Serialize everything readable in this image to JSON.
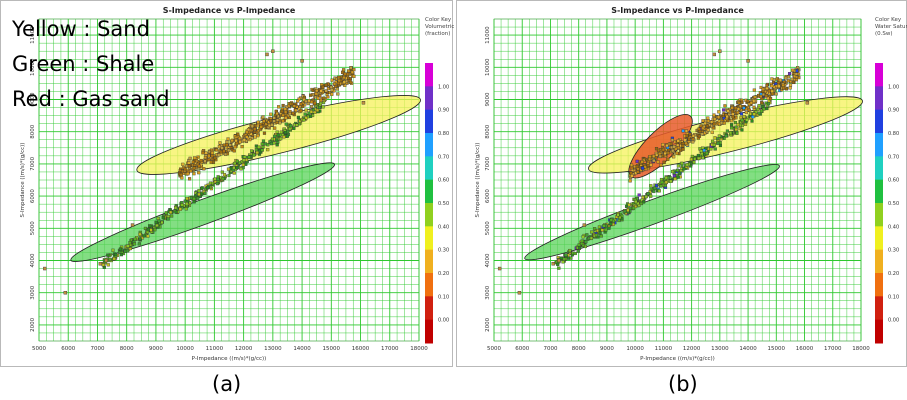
{
  "legend_overlay": {
    "yellow": "Yellow : Sand",
    "green": "Green : Shale",
    "red": "Red : Gas sand"
  },
  "captions": {
    "a": "(a)",
    "b": "(b)"
  },
  "colors": {
    "grid": "#2ec82e",
    "sand_ellipse": "#f5f25a",
    "shale_ellipse": "#5ad35a",
    "gas_ellipse": "#e85a2a"
  },
  "chart_data": [
    {
      "type": "scatter",
      "title": "S-Impedance vs P-Impedance",
      "xlabel": "P-Impedance ((m/s)*(g/cc))",
      "ylabel": "S-Impedance ((m/s)*(g/cc))",
      "xlim": [
        5000,
        18000
      ],
      "ylim": [
        1500,
        11500
      ],
      "xticks": [
        "5000",
        "6000",
        "7000",
        "8000",
        "9000",
        "10000",
        "11000",
        "12000",
        "13000",
        "14000",
        "15000",
        "16000",
        "17000",
        "18000"
      ],
      "yticks": [
        "2000",
        "3000",
        "4000",
        "5000",
        "6000",
        "7000",
        "8000",
        "9000",
        "10000",
        "11000"
      ],
      "grid": true,
      "colorkey": {
        "title": "Color Key",
        "subtitle": "Volumetric",
        "unit": "(fraction)",
        "labels": [
          "1.00",
          "0.90",
          "0.80",
          "0.70",
          "0.60",
          "0.50",
          "0.40",
          "0.30",
          "0.20",
          "0.10",
          "0.00"
        ],
        "colors": [
          "#d700d7",
          "#7030c8",
          "#2040e0",
          "#20a0ff",
          "#20d0c0",
          "#20c040",
          "#90d020",
          "#f0f020",
          "#f0b020",
          "#f07010",
          "#d02010",
          "#c00000"
        ]
      },
      "zones": [
        {
          "name": "Sand",
          "color": "yellow",
          "center": [
            13200,
            7900
          ],
          "semi_axes": [
            5000,
            620
          ],
          "angle": 14
        },
        {
          "name": "Shale",
          "color": "green",
          "center": [
            10600,
            5500
          ],
          "semi_axes": [
            4800,
            420
          ],
          "angle": 20
        }
      ],
      "series": [
        {
          "group": "shale",
          "x_range": [
            7200,
            14800
          ],
          "y_start": 3900,
          "slope": 0.66,
          "spread": 260,
          "count": 420
        },
        {
          "group": "sand",
          "x_range": [
            9800,
            15800
          ],
          "y_start": 6700,
          "slope": 0.52,
          "spread": 380,
          "count": 520
        }
      ],
      "outliers": [
        [
          5200,
          3750
        ],
        [
          5900,
          3000
        ],
        [
          7100,
          3900
        ],
        [
          7300,
          4000
        ],
        [
          8200,
          5100
        ],
        [
          12800,
          10400
        ],
        [
          13000,
          10500
        ],
        [
          14000,
          10200
        ],
        [
          16100,
          8900
        ]
      ]
    },
    {
      "type": "scatter",
      "title": "S-Impedance vs P-Impedance",
      "xlabel": "P-Impedance ((m/s)*(g/cc))",
      "ylabel": "S-Impedance ((m/s)*(g/cc))",
      "xlim": [
        5000,
        18000
      ],
      "ylim": [
        1500,
        11500
      ],
      "xticks": [
        "5000",
        "6000",
        "7000",
        "8000",
        "9000",
        "10000",
        "11000",
        "12000",
        "13000",
        "14000",
        "15000",
        "16000",
        "17000",
        "18000"
      ],
      "yticks": [
        "2000",
        "3000",
        "4000",
        "5000",
        "6000",
        "7000",
        "8000",
        "9000",
        "10000",
        "11000"
      ],
      "grid": true,
      "colorkey": {
        "title": "Color Key",
        "subtitle": "Water Satura",
        "unit": "(0.Sw)",
        "labels": [
          "1.00",
          "0.90",
          "0.80",
          "0.70",
          "0.60",
          "0.50",
          "0.40",
          "0.30",
          "0.20",
          "0.10",
          "0.00"
        ],
        "colors": [
          "#d700d7",
          "#7030c8",
          "#2040e0",
          "#20a0ff",
          "#20d0c0",
          "#20c040",
          "#90d020",
          "#f0f020",
          "#f0b020",
          "#f07010",
          "#d02010",
          "#c00000"
        ]
      },
      "zones": [
        {
          "name": "Sand",
          "color": "yellow",
          "center": [
            13200,
            7900
          ],
          "semi_axes": [
            5000,
            620
          ],
          "angle": 14
        },
        {
          "name": "Shale",
          "color": "green",
          "center": [
            10600,
            5500
          ],
          "semi_axes": [
            4800,
            420
          ],
          "angle": 20
        },
        {
          "name": "Gas sand",
          "color": "red",
          "center": [
            10900,
            7550
          ],
          "semi_axes": [
            1500,
            520
          ],
          "angle": 45
        }
      ],
      "series": [
        {
          "group": "shale",
          "x_range": [
            7200,
            14800
          ],
          "y_start": 3900,
          "slope": 0.66,
          "spread": 260,
          "count": 420
        },
        {
          "group": "sand",
          "x_range": [
            9800,
            15800
          ],
          "y_start": 6700,
          "slope": 0.52,
          "spread": 380,
          "count": 520
        }
      ],
      "outliers": [
        [
          5200,
          3750
        ],
        [
          5900,
          3000
        ],
        [
          7100,
          3900
        ],
        [
          7300,
          4000
        ],
        [
          8200,
          5100
        ],
        [
          12800,
          10400
        ],
        [
          13000,
          10500
        ],
        [
          14000,
          10200
        ],
        [
          16100,
          8900
        ]
      ]
    }
  ]
}
